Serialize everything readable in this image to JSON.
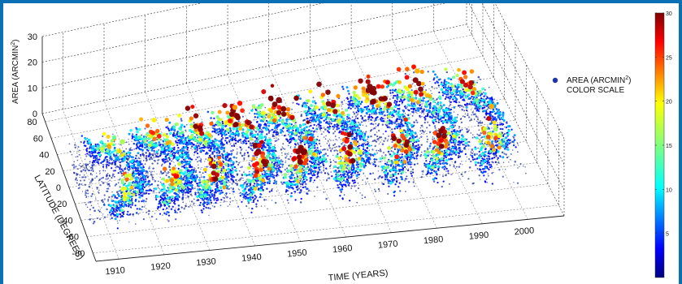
{
  "chart_data": {
    "type": "scatter",
    "projection": "3d",
    "xlabel": "TIME (YEARS)",
    "ylabel": "LATITUDE (DEGREES)",
    "zlabel_prefix": "AREA (ARCMIN",
    "zlabel_sup": "2",
    "zlabel_suffix": ")",
    "x_ticks": [
      "1910",
      "1920",
      "1930",
      "1940",
      "1950",
      "1960",
      "1970",
      "1980",
      "1990",
      "2000"
    ],
    "y_ticks": [
      "80",
      "60",
      "40",
      "20",
      "0",
      "-20",
      "-40",
      "-60",
      "-80"
    ],
    "z_ticks": [
      "30",
      "20",
      "10",
      "0"
    ],
    "xlim": [
      1905,
      2008
    ],
    "ylim": [
      -90,
      90
    ],
    "zlim": [
      0,
      30
    ],
    "grid": true,
    "legend": {
      "placement": "right",
      "marker_color": "#2233aa",
      "label_line1_prefix": "AREA (ARCMIN",
      "label_line1_sup": "2",
      "label_line1_suffix": ")",
      "label_line2": "COLOR SCALE"
    },
    "colorbar": {
      "ticks": [
        "30",
        "25",
        "20",
        "15",
        "10",
        "5"
      ],
      "range": [
        0,
        30
      ],
      "colormap": "jet"
    },
    "cycles": [
      {
        "peak_year": 1917,
        "peak_area": 18
      },
      {
        "peak_year": 1928,
        "peak_area": 22
      },
      {
        "peak_year": 1937,
        "peak_area": 25
      },
      {
        "peak_year": 1947,
        "peak_area": 28
      },
      {
        "peak_year": 1957,
        "peak_area": 30
      },
      {
        "peak_year": 1968,
        "peak_area": 26
      },
      {
        "peak_year": 1979,
        "peak_area": 29
      },
      {
        "peak_year": 1989,
        "peak_area": 27
      },
      {
        "peak_year": 2000,
        "peak_area": 22
      }
    ]
  }
}
